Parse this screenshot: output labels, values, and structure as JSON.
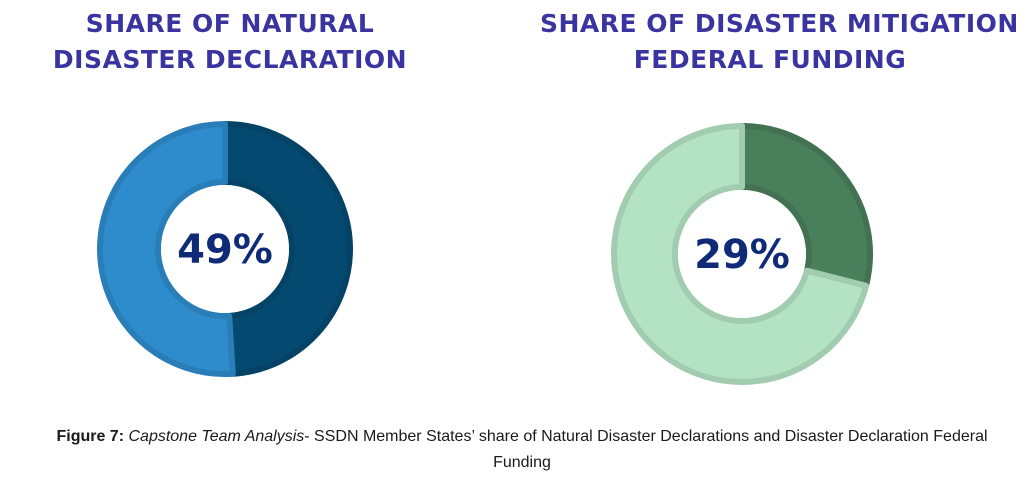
{
  "chart_data": [
    {
      "type": "pie",
      "title_lines": [
        "SHARE OF NATURAL",
        "DISASTER DECLARATION"
      ],
      "center_label": "49%",
      "slices": [
        {
          "value": 49,
          "color": "#044a70"
        },
        {
          "value": 51,
          "color": "#2e8ccc"
        }
      ],
      "title_color": "#3a34a0",
      "label_color": "#0f2b78"
    },
    {
      "type": "pie",
      "title_lines": [
        "SHARE OF DISASTER MITIGATION",
        "FEDERAL FUNDING"
      ],
      "center_label": "29%",
      "slices": [
        {
          "value": 29,
          "color": "#4a7f5c"
        },
        {
          "value": 71,
          "color": "#b3e3c2"
        }
      ],
      "title_color": "#3a34a0",
      "label_color": "#0f2b78"
    }
  ],
  "caption": {
    "label": "Figure 7:",
    "italic": "Capstone Team Analysis",
    "text": "- SSDN Member States’ share of Natural Disaster Declarations and Disaster Declaration Federal Funding"
  }
}
